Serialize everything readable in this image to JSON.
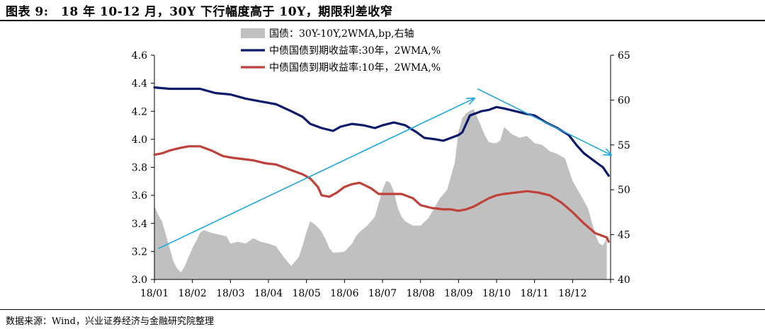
{
  "header": {
    "figure_title": "图表 9:　18 年 10-12 月，30Y 下行幅度高于 10Y，期限利差收窄"
  },
  "footer": {
    "source": "数据来源：Wind，兴业证券经济与金融研究院整理"
  },
  "colors": {
    "spread_fill": "#c0c0c0",
    "yield30y": "#0c1a6b",
    "yield10y": "#c0403a",
    "arrow": "#1aa7e6"
  },
  "chart_data": {
    "type": "line",
    "title": "18 年 10-12 月，30Y 下行幅度高于 10Y，期限利差收窄",
    "categories": [
      "18/01",
      "18/02",
      "18/03",
      "18/04",
      "18/05",
      "18/06",
      "18/07",
      "18/08",
      "18/09",
      "18/10",
      "18/11",
      "18/12"
    ],
    "y_left": {
      "min": 3.0,
      "max": 4.6,
      "ticks": [
        "3.0",
        "3.2",
        "3.4",
        "3.6",
        "3.8",
        "4.0",
        "4.2",
        "4.4",
        "4.6"
      ]
    },
    "y_right": {
      "min": 40,
      "max": 65,
      "ticks": [
        "40",
        "45",
        "50",
        "55",
        "60",
        "65"
      ]
    },
    "legend_position": "top-center",
    "series": [
      {
        "name": "国债：30Y-10Y,2WMA,bp,右轴",
        "kind": "area",
        "axis": "right",
        "x": [
          0,
          0.1,
          0.2,
          0.3,
          0.4,
          0.5,
          0.6,
          0.7,
          0.8,
          0.9,
          1.0,
          1.1,
          1.2,
          1.3,
          1.5,
          1.7,
          1.9,
          2.0,
          2.2,
          2.4,
          2.6,
          2.8,
          3.0,
          3.2,
          3.4,
          3.6,
          3.8,
          3.9,
          4.0,
          4.1,
          4.2,
          4.3,
          4.4,
          4.5,
          4.6,
          4.7,
          4.8,
          5.0,
          5.2,
          5.3,
          5.4,
          5.6,
          5.8,
          5.9,
          6.0,
          6.1,
          6.2,
          6.3,
          6.4,
          6.5,
          6.6,
          6.8,
          7.0,
          7.2,
          7.3,
          7.5,
          7.7,
          7.9,
          8.0,
          8.1,
          8.2,
          8.3,
          8.4,
          8.5,
          8.6,
          8.7,
          8.8,
          8.9,
          9.0,
          9.1,
          9.2,
          9.4,
          9.6,
          9.8,
          10.0,
          10.2,
          10.4,
          10.6,
          10.8,
          11.0,
          11.2,
          11.4,
          11.5,
          11.6,
          11.7,
          11.8,
          11.9
        ],
        "values": [
          48.2,
          47.2,
          46.5,
          45.0,
          43.5,
          42.0,
          41.2,
          40.8,
          41.5,
          42.5,
          43.5,
          44.3,
          45.2,
          45.5,
          45.2,
          45.0,
          44.8,
          44.0,
          44.2,
          44.0,
          44.6,
          44.2,
          44.0,
          43.7,
          42.5,
          41.5,
          42.5,
          43.8,
          45.3,
          46.5,
          46.2,
          45.8,
          45.3,
          44.5,
          43.5,
          43.0,
          43.0,
          43.1,
          44.0,
          44.8,
          45.3,
          46.0,
          47.0,
          48.5,
          50.0,
          51.0,
          50.8,
          49.8,
          48.0,
          47.0,
          46.5,
          46.0,
          46.0,
          46.8,
          47.5,
          49.0,
          50.0,
          53.0,
          56.5,
          58.0,
          58.5,
          58.8,
          59.0,
          58.0,
          57.0,
          56.0,
          55.3,
          55.2,
          55.2,
          55.5,
          57.0,
          56.2,
          55.8,
          56.0,
          55.2,
          55.0,
          54.3,
          54.0,
          53.5,
          51.0,
          49.5,
          48.0,
          46.5,
          45.0,
          44.0,
          43.8,
          44.6
        ]
      },
      {
        "name": "中债国债到期收益率:30年，2WMA,%",
        "kind": "line",
        "axis": "left",
        "x": [
          0,
          0.4,
          0.8,
          1.2,
          1.6,
          2.0,
          2.4,
          2.8,
          3.2,
          3.6,
          3.9,
          4.1,
          4.4,
          4.7,
          4.9,
          5.2,
          5.5,
          5.8,
          6.0,
          6.3,
          6.6,
          6.9,
          7.1,
          7.4,
          7.6,
          7.8,
          8.0,
          8.1,
          8.3,
          8.6,
          8.8,
          9.0,
          9.2,
          9.5,
          9.8,
          10.0,
          10.3,
          10.6,
          10.9,
          11.1,
          11.3,
          11.6,
          11.8,
          11.95
        ],
        "values": [
          4.37,
          4.36,
          4.36,
          4.36,
          4.33,
          4.32,
          4.29,
          4.27,
          4.25,
          4.2,
          4.16,
          4.11,
          4.08,
          4.06,
          4.09,
          4.11,
          4.1,
          4.08,
          4.1,
          4.12,
          4.1,
          4.05,
          4.01,
          4.0,
          3.99,
          4.01,
          4.03,
          4.05,
          4.17,
          4.2,
          4.21,
          4.23,
          4.22,
          4.2,
          4.18,
          4.17,
          4.12,
          4.08,
          4.03,
          3.96,
          3.9,
          3.84,
          3.8,
          3.74
        ]
      },
      {
        "name": "中债国债到期收益率:10年，2WMA,%",
        "kind": "line",
        "axis": "left",
        "x": [
          0,
          0.2,
          0.4,
          0.7,
          0.9,
          1.2,
          1.5,
          1.8,
          2.0,
          2.3,
          2.6,
          2.9,
          3.2,
          3.6,
          3.9,
          4.1,
          4.3,
          4.4,
          4.6,
          4.8,
          5.0,
          5.2,
          5.4,
          5.7,
          5.9,
          6.2,
          6.5,
          6.8,
          7.0,
          7.3,
          7.6,
          7.8,
          8.0,
          8.2,
          8.4,
          8.6,
          8.8,
          9.0,
          9.2,
          9.5,
          9.8,
          10.1,
          10.4,
          10.7,
          11.0,
          11.3,
          11.6,
          11.9,
          11.95
        ],
        "values": [
          3.89,
          3.9,
          3.92,
          3.94,
          3.95,
          3.95,
          3.92,
          3.88,
          3.87,
          3.86,
          3.85,
          3.83,
          3.82,
          3.78,
          3.75,
          3.72,
          3.66,
          3.6,
          3.59,
          3.62,
          3.66,
          3.68,
          3.69,
          3.65,
          3.61,
          3.61,
          3.61,
          3.58,
          3.53,
          3.51,
          3.5,
          3.5,
          3.49,
          3.5,
          3.52,
          3.55,
          3.58,
          3.6,
          3.61,
          3.62,
          3.63,
          3.62,
          3.6,
          3.55,
          3.48,
          3.4,
          3.33,
          3.3,
          3.27
        ]
      }
    ],
    "annotations": [
      {
        "type": "arrow",
        "from": {
          "x": 0.1,
          "y": 3.22
        },
        "to": {
          "x": 8.4,
          "y": 4.29
        }
      },
      {
        "type": "arrow",
        "from": {
          "x": 8.5,
          "y": 4.36
        },
        "to": {
          "x": 12.0,
          "y": 3.89
        }
      }
    ]
  }
}
